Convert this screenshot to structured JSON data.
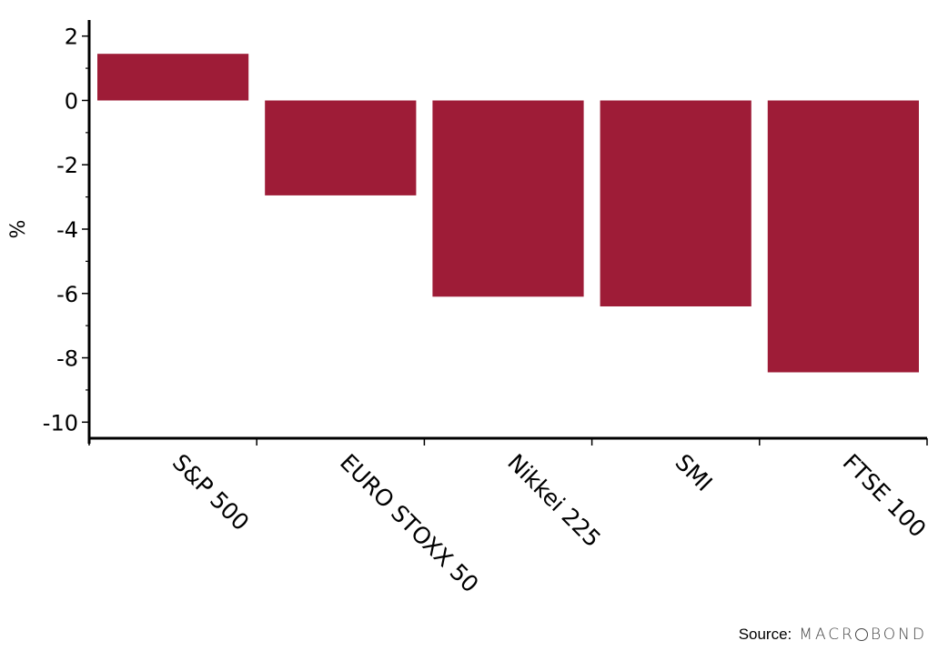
{
  "chart_data": {
    "type": "bar",
    "categories": [
      "S&P 500",
      "EURO STOXX 50",
      "Nikkei 225",
      "SMI",
      "FTSE 100"
    ],
    "series": [
      {
        "values": [
          1.45,
          -2.95,
          -6.1,
          -6.4,
          -8.45
        ]
      }
    ],
    "ylabel": "%",
    "xlabel": "",
    "title": "",
    "ylim": [
      -10.5,
      2.5
    ],
    "yticks": [
      2,
      0,
      -2,
      -4,
      -6,
      -8,
      -10
    ],
    "grid": false,
    "bar_color": "#9e1c37"
  },
  "source": {
    "label": "Source:",
    "brand_prefix": "MACR",
    "brand_suffix": "BOND"
  }
}
